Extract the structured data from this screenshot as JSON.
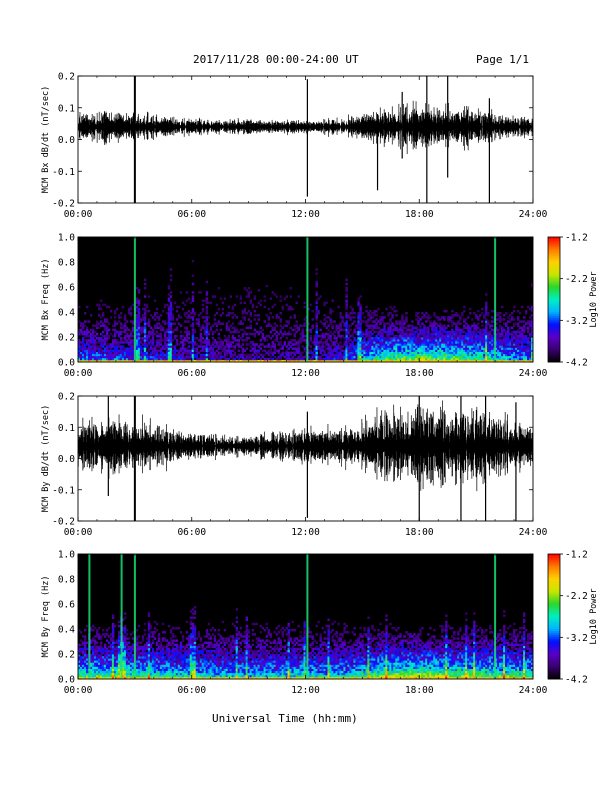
{
  "header": {
    "title": "2017/11/28  00:00-24:00 UT",
    "page": "Page 1/1"
  },
  "footer": {
    "xlabel": "Universal Time (hh:mm)"
  },
  "colors": {
    "trace": "#000000",
    "spectrogram_background": "#000000",
    "colormap": [
      "#000000",
      "#3a0070",
      "#5a00c8",
      "#0010ff",
      "#00b4ff",
      "#00f0c0",
      "#2bd62b",
      "#c8e600",
      "#ffd200",
      "#ff7a00",
      "#ff0000"
    ]
  },
  "chart_data": [
    {
      "type": "line",
      "ylabel": "MCM Bx dB/dt (nT/sec)",
      "xticks": [
        "00:00",
        "06:00",
        "12:00",
        "18:00",
        "24:00"
      ],
      "yticks": [
        "0.2",
        "0.1",
        "0.0",
        "-0.1",
        "-0.2"
      ],
      "xlim": [
        0,
        24
      ],
      "ylim": [
        -0.2,
        0.2
      ],
      "baseline": 0.04,
      "envelope": {
        "hours": [
          0,
          2,
          4,
          6,
          8,
          10,
          12,
          14,
          15,
          16,
          17,
          18,
          19,
          20,
          21,
          22,
          23,
          24
        ],
        "amplitude": [
          0.04,
          0.05,
          0.035,
          0.025,
          0.02,
          0.02,
          0.02,
          0.025,
          0.04,
          0.05,
          0.06,
          0.07,
          0.065,
          0.06,
          0.055,
          0.045,
          0.035,
          0.03
        ]
      },
      "spikes": [
        {
          "hour": 3.0,
          "low": -0.21,
          "high": 0.21
        },
        {
          "hour": 12.1,
          "low": -0.18,
          "high": 0.19
        },
        {
          "hour": 15.8,
          "low": -0.16,
          "high": 0.08
        },
        {
          "hour": 17.1,
          "low": -0.06,
          "high": 0.15
        },
        {
          "hour": 18.4,
          "low": -0.21,
          "high": 0.2
        },
        {
          "hour": 19.5,
          "low": -0.12,
          "high": 0.2
        },
        {
          "hour": 21.7,
          "low": -0.21,
          "high": 0.13
        }
      ],
      "grid": false
    },
    {
      "type": "heatmap",
      "ylabel": "MCM Bx Freq (Hz)",
      "xticks": [
        "00:00",
        "06:00",
        "12:00",
        "18:00",
        "24:00"
      ],
      "yticks": [
        "1.0",
        "0.8",
        "0.6",
        "0.4",
        "0.2",
        "0.0"
      ],
      "xlim": [
        0,
        24
      ],
      "ylim": [
        0,
        1.0
      ],
      "colorbar": {
        "label": "Log10 Power",
        "ticks": [
          "-1.2",
          "-2.2",
          "-3.2",
          "-4.2"
        ],
        "range": [
          -4.2,
          -1.2
        ]
      },
      "activity": {
        "hours": [
          0,
          3,
          6,
          9,
          12,
          14,
          15,
          16,
          18,
          20,
          22,
          24
        ],
        "level": [
          0.45,
          0.4,
          0.25,
          0.2,
          0.25,
          0.3,
          0.6,
          0.75,
          0.85,
          0.8,
          0.65,
          0.5
        ]
      },
      "streaks": [
        3.0,
        12.1,
        22.0
      ]
    },
    {
      "type": "line",
      "ylabel": "MCM By dB/dt (nT/sec)",
      "xticks": [
        "00:00",
        "06:00",
        "12:00",
        "18:00",
        "24:00"
      ],
      "yticks": [
        "0.2",
        "0.1",
        "0.0",
        "-0.1",
        "-0.2"
      ],
      "xlim": [
        0,
        24
      ],
      "ylim": [
        -0.2,
        0.2
      ],
      "baseline": 0.04,
      "envelope": {
        "hours": [
          0,
          2,
          4,
          6,
          8,
          10,
          12,
          14,
          15,
          16,
          17,
          18,
          19,
          20,
          21,
          22,
          23,
          24
        ],
        "amplitude": [
          0.07,
          0.09,
          0.07,
          0.04,
          0.03,
          0.04,
          0.05,
          0.06,
          0.08,
          0.1,
          0.11,
          0.12,
          0.12,
          0.11,
          0.12,
          0.1,
          0.08,
          0.07
        ]
      },
      "spikes": [
        {
          "hour": 1.6,
          "low": -0.12,
          "high": 0.2
        },
        {
          "hour": 3.0,
          "low": -0.21,
          "high": 0.21
        },
        {
          "hour": 12.1,
          "low": -0.19,
          "high": 0.15
        },
        {
          "hour": 18.0,
          "low": -0.21,
          "high": 0.2
        },
        {
          "hour": 20.2,
          "low": -0.21,
          "high": 0.2
        },
        {
          "hour": 21.5,
          "low": -0.21,
          "high": 0.2
        },
        {
          "hour": 23.1,
          "low": -0.21,
          "high": 0.18
        }
      ],
      "grid": false
    },
    {
      "type": "heatmap",
      "ylabel": "MCM By Freq (Hz)",
      "xticks": [
        "00:00",
        "06:00",
        "12:00",
        "18:00",
        "24:00"
      ],
      "yticks": [
        "1.0",
        "0.8",
        "0.6",
        "0.4",
        "0.2",
        "0.0"
      ],
      "xlim": [
        0,
        24
      ],
      "ylim": [
        0,
        1.0
      ],
      "colorbar": {
        "label": "Log10 Power",
        "ticks": [
          "-1.2",
          "-2.2",
          "-3.2",
          "-4.2"
        ],
        "range": [
          -4.2,
          -1.2
        ]
      },
      "activity": {
        "hours": [
          0,
          3,
          6,
          9,
          12,
          14,
          15,
          16,
          18,
          20,
          22,
          24
        ],
        "level": [
          0.75,
          0.75,
          0.65,
          0.6,
          0.65,
          0.6,
          0.75,
          0.85,
          0.9,
          0.85,
          0.8,
          0.75
        ]
      },
      "streaks": [
        0.6,
        2.3,
        3.0,
        12.1,
        22.0
      ]
    }
  ]
}
